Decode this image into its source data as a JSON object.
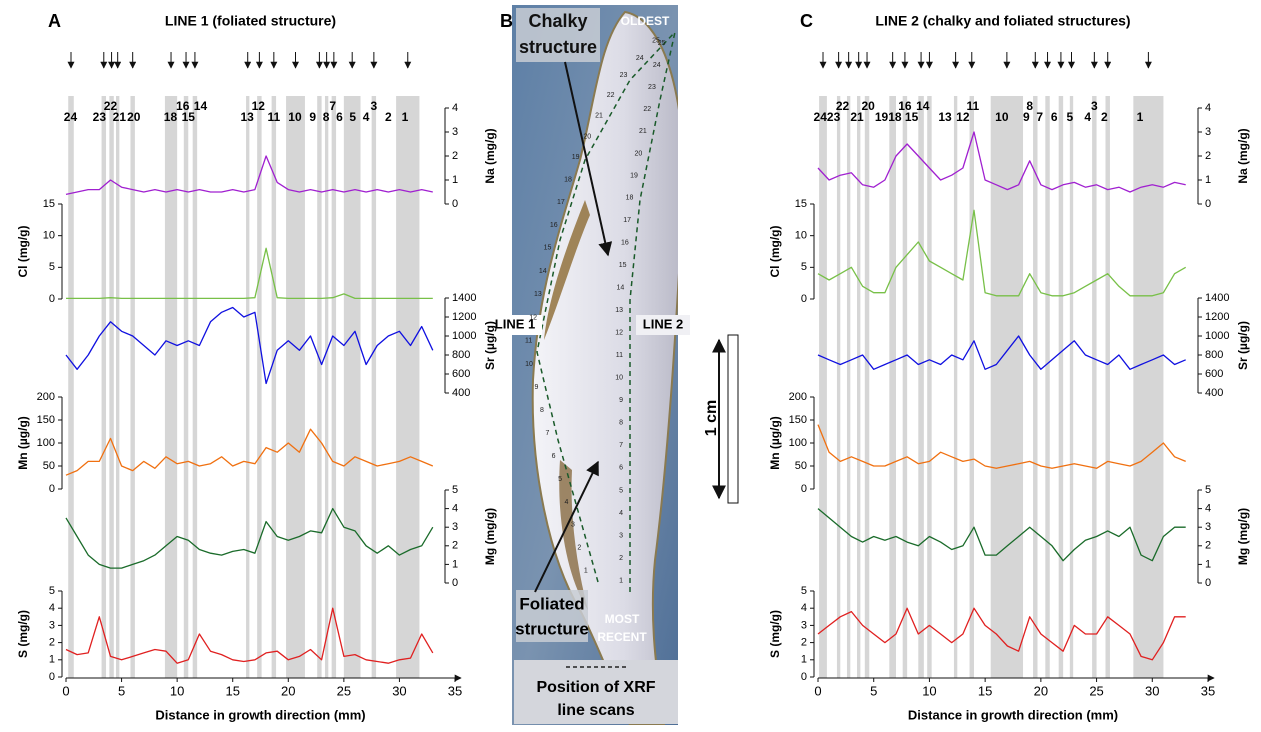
{
  "chart_data": [
    {
      "type": "line",
      "panel_label": "A",
      "title": "LINE 1 (foliated structure)",
      "xlabel": "Distance in growth direction (mm)",
      "xlim": [
        0,
        35
      ],
      "xticks": [
        0,
        5,
        10,
        15,
        20,
        25,
        30,
        35
      ],
      "x": [
        0,
        1,
        2,
        3,
        4,
        5,
        6,
        7,
        8,
        9,
        10,
        11,
        12,
        13,
        14,
        15,
        16,
        17,
        18,
        19,
        20,
        21,
        22,
        23,
        24,
        25,
        26,
        27,
        28,
        29,
        30,
        31,
        32,
        33
      ],
      "bands": [
        [
          0.2,
          0.7
        ],
        [
          3.2,
          3.6
        ],
        [
          3.9,
          4.3
        ],
        [
          4.5,
          4.8
        ],
        [
          5.8,
          6.2
        ],
        [
          8.9,
          10.0
        ],
        [
          10.6,
          11.0
        ],
        [
          11.4,
          11.8
        ],
        [
          16.2,
          16.5
        ],
        [
          17.2,
          17.6
        ],
        [
          18.5,
          18.9
        ],
        [
          19.8,
          21.5
        ],
        [
          22.6,
          23.0
        ],
        [
          23.3,
          23.6
        ],
        [
          23.9,
          24.3
        ],
        [
          25.0,
          26.5
        ],
        [
          27.5,
          27.9
        ],
        [
          29.7,
          31.8
        ]
      ],
      "band_labels": [
        {
          "label": "24",
          "x": 0.4
        },
        {
          "label": "23",
          "x": 3.0
        },
        {
          "label": "22",
          "x": 4.0
        },
        {
          "label": "21",
          "x": 4.8
        },
        {
          "label": "20",
          "x": 6.1
        },
        {
          "label": "18",
          "x": 9.4
        },
        {
          "label": "16",
          "x": 10.5
        },
        {
          "label": "15",
          "x": 11.0
        },
        {
          "label": "14",
          "x": 12.1
        },
        {
          "label": "13",
          "x": 16.3
        },
        {
          "label": "12",
          "x": 17.3
        },
        {
          "label": "11",
          "x": 18.7
        },
        {
          "label": "10",
          "x": 20.6
        },
        {
          "label": "9",
          "x": 22.2
        },
        {
          "label": "8",
          "x": 23.4
        },
        {
          "label": "7",
          "x": 24.0
        },
        {
          "label": "6",
          "x": 24.6
        },
        {
          "label": "5",
          "x": 25.8
        },
        {
          "label": "4",
          "x": 27.0
        },
        {
          "label": "3",
          "x": 27.7
        },
        {
          "label": "2",
          "x": 29.0
        },
        {
          "label": "1",
          "x": 30.5
        }
      ],
      "series": [
        {
          "ylabel": "Na (mg/g)",
          "axis": "right",
          "color": "#a020d0",
          "ylim": [
            0,
            4
          ],
          "yticks": [
            0,
            1,
            2,
            3,
            4
          ],
          "values": [
            0.4,
            0.5,
            0.6,
            0.6,
            1.0,
            0.7,
            0.6,
            0.5,
            0.6,
            0.5,
            0.6,
            0.5,
            0.6,
            0.5,
            0.5,
            0.6,
            0.5,
            0.6,
            2.0,
            0.9,
            0.6,
            0.5,
            0.6,
            0.5,
            0.6,
            0.5,
            0.6,
            0.5,
            0.6,
            0.5,
            0.6,
            0.5,
            0.6,
            0.5
          ]
        },
        {
          "ylabel": "Cl (mg/g)",
          "axis": "left",
          "color": "#78c048",
          "ylim": [
            0,
            15
          ],
          "yticks": [
            0,
            5,
            10,
            15
          ],
          "values": [
            0.1,
            0.1,
            0.1,
            0.1,
            0.2,
            0.1,
            0.1,
            0.1,
            0.1,
            0.1,
            0.1,
            0.1,
            0.1,
            0.1,
            0.1,
            0.1,
            0.1,
            0.2,
            8,
            0.2,
            0.1,
            0.1,
            0.1,
            0.1,
            0.2,
            0.8,
            0.1,
            0.1,
            0.1,
            0.1,
            0.1,
            0.1,
            0.1,
            0.1
          ]
        },
        {
          "ylabel": "Sr (µg/g)",
          "axis": "right",
          "color": "#1010e0",
          "ylim": [
            400,
            1400
          ],
          "yticks": [
            400,
            600,
            800,
            1000,
            1200,
            1400
          ],
          "values": [
            800,
            650,
            800,
            1000,
            1150,
            1050,
            1000,
            900,
            800,
            950,
            900,
            950,
            900,
            1150,
            1250,
            1300,
            1200,
            1250,
            500,
            850,
            950,
            850,
            1000,
            700,
            1000,
            900,
            1050,
            700,
            900,
            1000,
            1050,
            900,
            1100,
            850
          ]
        },
        {
          "ylabel": "Mn (µg/g)",
          "axis": "left",
          "color": "#f07010",
          "ylim": [
            0,
            200
          ],
          "yticks": [
            0,
            50,
            100,
            150,
            200
          ],
          "values": [
            30,
            40,
            60,
            60,
            110,
            50,
            40,
            60,
            45,
            70,
            55,
            60,
            50,
            55,
            70,
            50,
            60,
            55,
            90,
            80,
            100,
            80,
            130,
            100,
            60,
            50,
            70,
            60,
            50,
            55,
            60,
            70,
            60,
            50
          ]
        },
        {
          "ylabel": "Mg (mg/g)",
          "axis": "right",
          "color": "#1a6b2a",
          "ylim": [
            0,
            5
          ],
          "yticks": [
            0,
            1,
            2,
            3,
            4,
            5
          ],
          "values": [
            3.5,
            2.5,
            1.5,
            1,
            0.8,
            0.8,
            1,
            1.2,
            1.5,
            2,
            2.5,
            2.3,
            1.8,
            1.6,
            1.5,
            1.7,
            1.8,
            1.6,
            3.3,
            2.5,
            2.3,
            2.5,
            2.8,
            2.7,
            4,
            3,
            2.8,
            2,
            1.6,
            2,
            1.5,
            1.8,
            2,
            3
          ]
        },
        {
          "ylabel": "S (mg/g)",
          "axis": "left",
          "color": "#e02020",
          "ylim": [
            0,
            5
          ],
          "yticks": [
            0,
            1,
            2,
            3,
            4,
            5
          ],
          "values": [
            1.6,
            1.3,
            1.4,
            3.5,
            1.2,
            1,
            1.2,
            1.4,
            1.6,
            1.5,
            0.8,
            1,
            2.5,
            1.5,
            1.3,
            1,
            0.9,
            1,
            1.4,
            1.5,
            1,
            1.2,
            1.6,
            1,
            4,
            1.2,
            1.3,
            1,
            0.9,
            0.8,
            1,
            1.1,
            2.5,
            1.4
          ]
        }
      ]
    },
    {
      "type": "line",
      "panel_label": "C",
      "title": "LINE 2 (chalky and foliated structures)",
      "xlabel": "Distance in growth direction (mm)",
      "xlim": [
        0,
        35
      ],
      "xticks": [
        0,
        5,
        10,
        15,
        20,
        25,
        30,
        35
      ],
      "x": [
        0,
        1,
        2,
        3,
        4,
        5,
        6,
        7,
        8,
        9,
        10,
        11,
        12,
        13,
        14,
        15,
        16,
        17,
        18,
        19,
        20,
        21,
        22,
        23,
        24,
        25,
        26,
        27,
        28,
        29,
        30,
        31,
        32,
        33
      ],
      "bands": [
        [
          0.1,
          0.8
        ],
        [
          1.7,
          2.0
        ],
        [
          2.6,
          2.9
        ],
        [
          3.5,
          3.8
        ],
        [
          4.2,
          4.6
        ],
        [
          6.4,
          7.0
        ],
        [
          7.6,
          8.0
        ],
        [
          9.0,
          9.5
        ],
        [
          9.8,
          10.2
        ],
        [
          12.2,
          12.5
        ],
        [
          13.6,
          14.0
        ],
        [
          15.5,
          18.4
        ],
        [
          19.3,
          19.7
        ],
        [
          20.4,
          20.8
        ],
        [
          21.6,
          22.0
        ],
        [
          22.6,
          22.9
        ],
        [
          24.6,
          25.0
        ],
        [
          25.8,
          26.2
        ],
        [
          28.3,
          31.0
        ]
      ],
      "band_labels": [
        {
          "label": "24",
          "x": 0.2
        },
        {
          "label": "23",
          "x": 1.4
        },
        {
          "label": "22",
          "x": 2.2
        },
        {
          "label": "21",
          "x": 3.5
        },
        {
          "label": "20",
          "x": 4.5
        },
        {
          "label": "19",
          "x": 5.7
        },
        {
          "label": "18",
          "x": 6.9
        },
        {
          "label": "16",
          "x": 7.8
        },
        {
          "label": "15",
          "x": 8.4
        },
        {
          "label": "14",
          "x": 9.4
        },
        {
          "label": "13",
          "x": 11.4
        },
        {
          "label": "12",
          "x": 13.0
        },
        {
          "label": "11",
          "x": 13.9
        },
        {
          "label": "10",
          "x": 16.5
        },
        {
          "label": "9",
          "x": 18.7
        },
        {
          "label": "8",
          "x": 19.0
        },
        {
          "label": "7",
          "x": 19.9
        },
        {
          "label": "6",
          "x": 21.2
        },
        {
          "label": "5",
          "x": 22.6
        },
        {
          "label": "4",
          "x": 24.2
        },
        {
          "label": "3",
          "x": 24.8
        },
        {
          "label": "2",
          "x": 25.7
        },
        {
          "label": "1",
          "x": 28.9
        }
      ],
      "series": [
        {
          "ylabel": "Na (mg/g)",
          "axis": "right",
          "color": "#a020d0",
          "ylim": [
            0,
            4
          ],
          "yticks": [
            0,
            1,
            2,
            3,
            4
          ],
          "values": [
            1.5,
            1,
            1.2,
            1.3,
            0.8,
            0.7,
            1.0,
            2.0,
            2.5,
            2.0,
            1.5,
            1.0,
            1.2,
            1.5,
            3.0,
            1.0,
            0.8,
            0.6,
            0.8,
            1.8,
            0.8,
            0.6,
            0.8,
            0.9,
            0.7,
            0.8,
            0.6,
            0.7,
            0.5,
            0.7,
            0.8,
            0.7,
            0.9,
            0.8
          ]
        },
        {
          "ylabel": "Cl (mg/g)",
          "axis": "left",
          "color": "#78c048",
          "ylim": [
            0,
            15
          ],
          "yticks": [
            0,
            5,
            10,
            15
          ],
          "values": [
            4,
            3,
            4,
            5,
            2,
            1,
            1,
            5,
            7,
            9,
            6,
            5,
            4,
            3,
            14,
            1,
            0.5,
            0.5,
            0.5,
            4,
            1,
            0.5,
            0.5,
            1,
            2,
            3,
            4,
            2,
            0.5,
            0.5,
            0.5,
            1,
            4,
            5
          ]
        },
        {
          "ylabel": "Sr (µg/g)",
          "axis": "right",
          "color": "#1010e0",
          "ylim": [
            400,
            1400
          ],
          "yticks": [
            400,
            600,
            800,
            1000,
            1200,
            1400
          ],
          "values": [
            800,
            750,
            700,
            750,
            800,
            650,
            700,
            750,
            800,
            700,
            750,
            700,
            800,
            750,
            950,
            650,
            700,
            850,
            1000,
            800,
            650,
            750,
            850,
            950,
            800,
            750,
            700,
            800,
            650,
            700,
            750,
            800,
            700,
            750
          ]
        },
        {
          "ylabel": "Mn (µg/g)",
          "axis": "left",
          "color": "#f07010",
          "ylim": [
            0,
            200
          ],
          "yticks": [
            0,
            50,
            100,
            150,
            200
          ],
          "values": [
            140,
            80,
            60,
            70,
            60,
            50,
            50,
            60,
            70,
            55,
            60,
            80,
            70,
            60,
            65,
            50,
            45,
            50,
            55,
            60,
            50,
            45,
            50,
            55,
            50,
            45,
            60,
            55,
            50,
            60,
            80,
            100,
            70,
            60
          ]
        },
        {
          "ylabel": "Mg (mg/g)",
          "axis": "right",
          "color": "#1a6b2a",
          "ylim": [
            0,
            5
          ],
          "yticks": [
            0,
            1,
            2,
            3,
            4,
            5
          ],
          "values": [
            4,
            3.5,
            3,
            2.5,
            2.2,
            2.5,
            2.3,
            2.5,
            2.2,
            2,
            2.5,
            2.2,
            1.8,
            2,
            3,
            1.5,
            1.5,
            2,
            2.5,
            3,
            2.5,
            2,
            1.2,
            1.8,
            2.3,
            2.5,
            2.8,
            2.5,
            3,
            1.5,
            1.2,
            2.5,
            3,
            3
          ]
        },
        {
          "ylabel": "S (mg/g)",
          "axis": "left",
          "color": "#e02020",
          "ylim": [
            0,
            5
          ],
          "yticks": [
            0,
            1,
            2,
            3,
            4,
            5
          ],
          "values": [
            2.5,
            3,
            3.5,
            3.8,
            3,
            2.5,
            2,
            2.5,
            4,
            2.5,
            3,
            2.5,
            2,
            2.5,
            4,
            3,
            2.5,
            1.8,
            1.5,
            3.5,
            2.5,
            2,
            1.5,
            3,
            2.5,
            2.5,
            3.5,
            3,
            2.5,
            1.2,
            1,
            2,
            3.5,
            3.5
          ]
        }
      ]
    }
  ],
  "photo": {
    "panel_label": "B",
    "chalky": [
      "Chalky",
      "structure"
    ],
    "oldest": "OLDEST",
    "line1": "LINE 1",
    "line2": "LINE 2",
    "scale": "1 cm",
    "foliated": [
      "Foliated",
      "structure"
    ],
    "recent": [
      "MOST",
      "RECENT"
    ],
    "legend": [
      "Position of XRF",
      "line scans"
    ],
    "line1_points": [
      1,
      2,
      3,
      4,
      5,
      6,
      7,
      8,
      9,
      10,
      11,
      12,
      13,
      14,
      15,
      16,
      17,
      18,
      19,
      20,
      21,
      22,
      23,
      24,
      25
    ],
    "line2_points": [
      1,
      2,
      3,
      4,
      5,
      6,
      7,
      8,
      9,
      10,
      11,
      12,
      13,
      14,
      15,
      16,
      17,
      18,
      19,
      20,
      21,
      22,
      23,
      24,
      25
    ]
  }
}
